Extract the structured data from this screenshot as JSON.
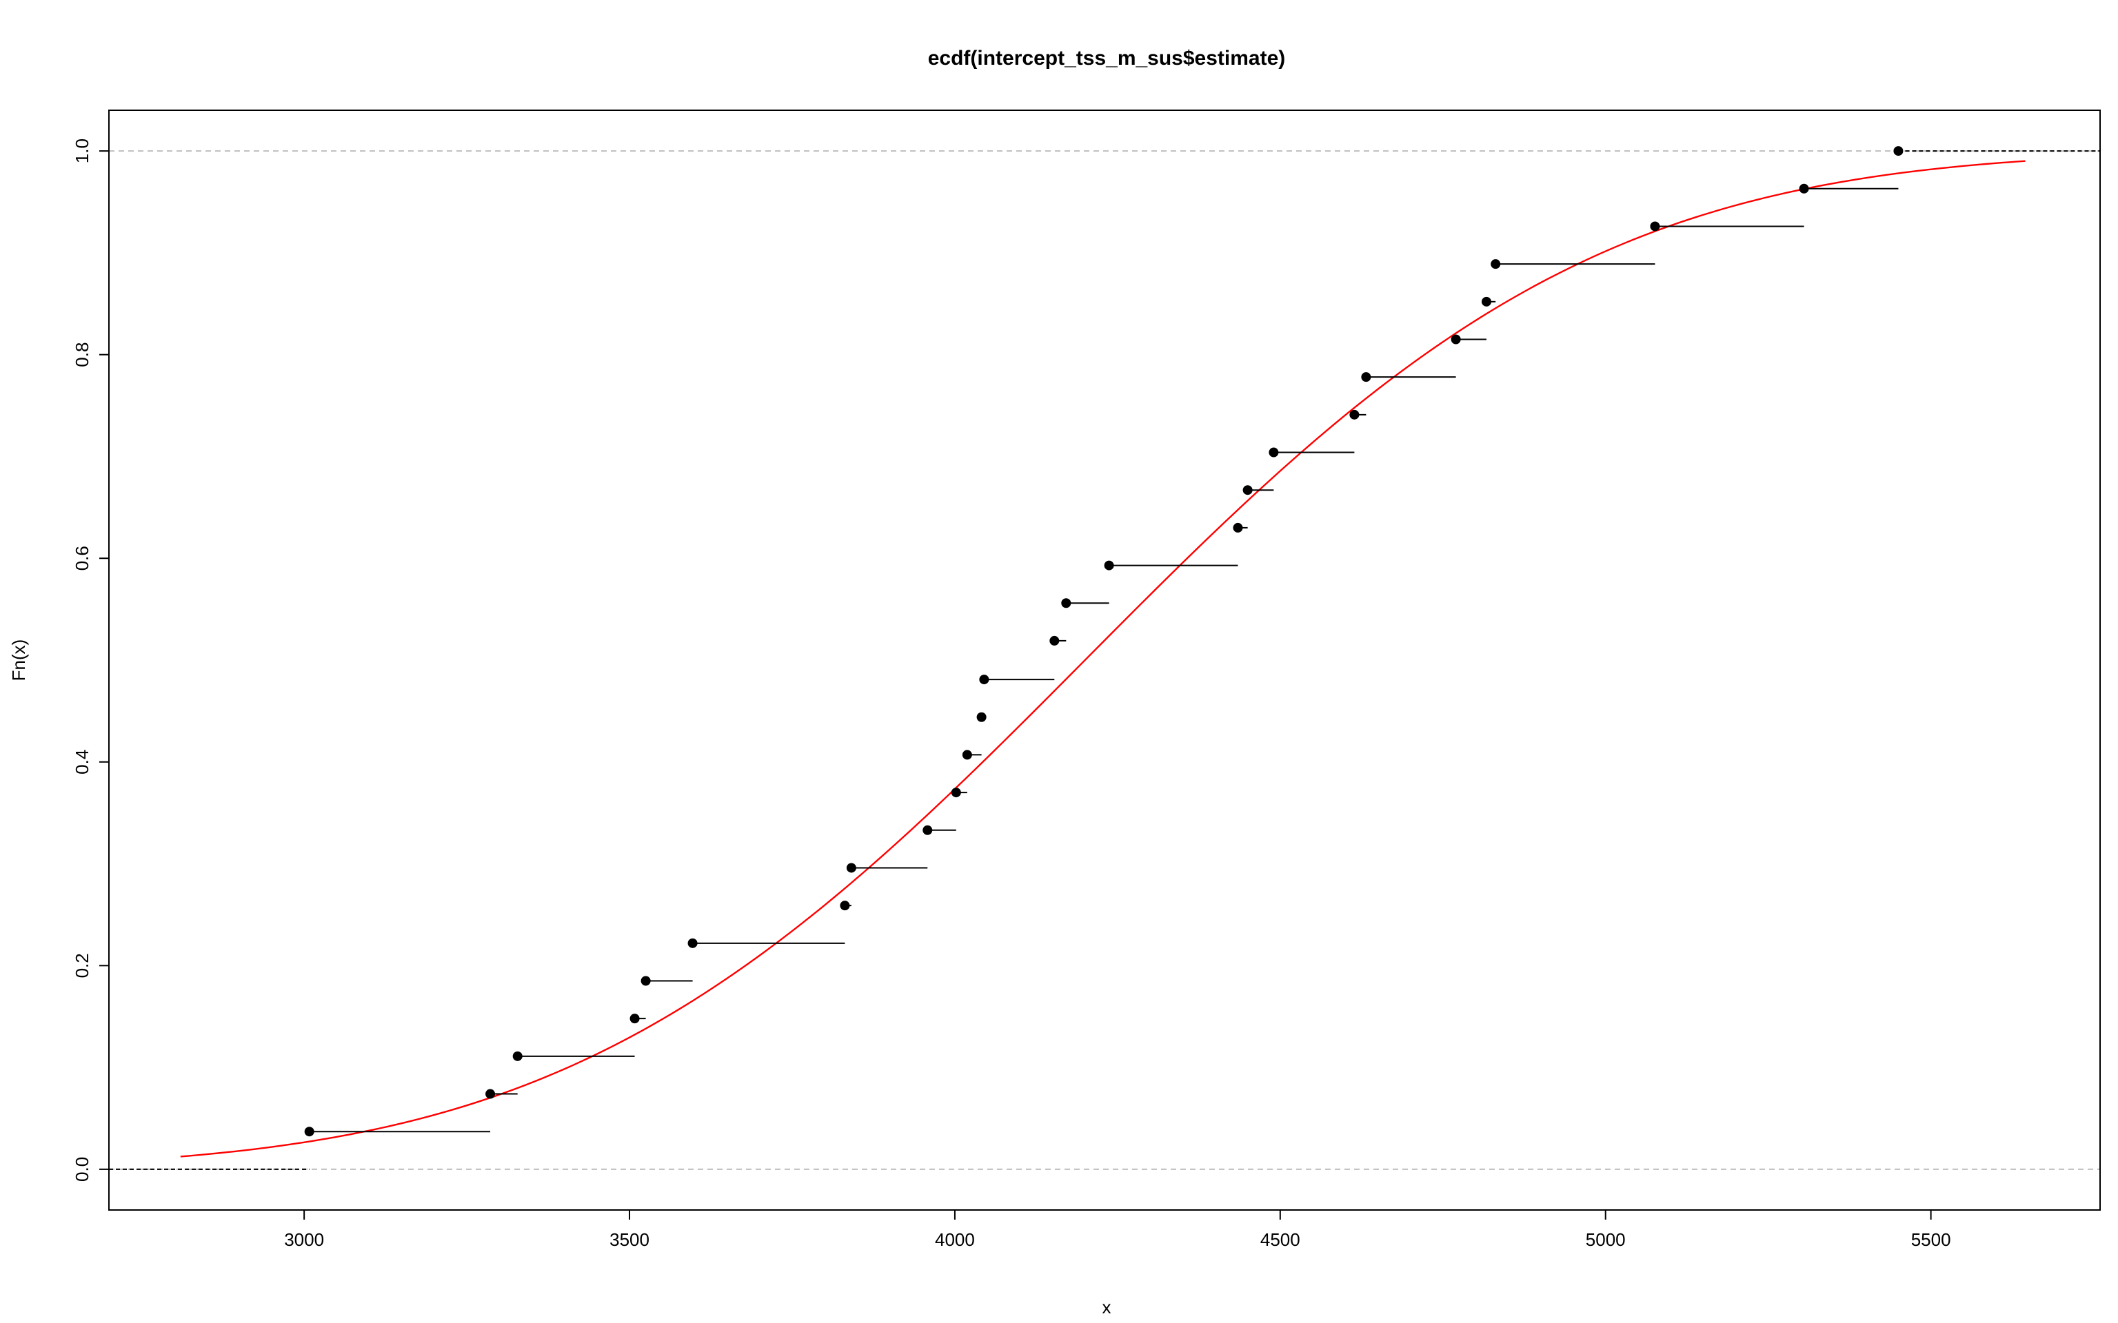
{
  "chart_data": {
    "type": "ecdf",
    "title": "ecdf(intercept_tss_m_sus$estimate)",
    "xlabel": "x",
    "ylabel": "Fn(x)",
    "xlim": [
      2700,
      5760
    ],
    "ylim": [
      -0.04,
      1.04
    ],
    "x_ticks": [
      3000,
      3500,
      4000,
      4500,
      5000,
      5500
    ],
    "y_ticks": [
      0.0,
      0.2,
      0.4,
      0.6,
      0.8,
      1.0
    ],
    "x_tick_labels": [
      "3000",
      "3500",
      "4000",
      "4500",
      "5000",
      "5500"
    ],
    "y_tick_labels": [
      "0.0",
      "0.2",
      "0.4",
      "0.6",
      "0.8",
      "1.0"
    ],
    "reference_lines": [
      0,
      1
    ],
    "points": [
      {
        "x": 3008,
        "y": 0.037
      },
      {
        "x": 3286,
        "y": 0.074
      },
      {
        "x": 3328,
        "y": 0.111
      },
      {
        "x": 3508,
        "y": 0.148
      },
      {
        "x": 3525,
        "y": 0.185
      },
      {
        "x": 3597,
        "y": 0.222
      },
      {
        "x": 3831,
        "y": 0.259
      },
      {
        "x": 3841,
        "y": 0.296
      },
      {
        "x": 3958,
        "y": 0.333
      },
      {
        "x": 4002,
        "y": 0.37
      },
      {
        "x": 4019,
        "y": 0.407
      },
      {
        "x": 4041,
        "y": 0.444
      },
      {
        "x": 4045,
        "y": 0.481
      },
      {
        "x": 4153,
        "y": 0.519
      },
      {
        "x": 4171,
        "y": 0.556
      },
      {
        "x": 4237,
        "y": 0.593
      },
      {
        "x": 4435,
        "y": 0.63
      },
      {
        "x": 4450,
        "y": 0.667
      },
      {
        "x": 4490,
        "y": 0.704
      },
      {
        "x": 4614,
        "y": 0.741
      },
      {
        "x": 4632,
        "y": 0.778
      },
      {
        "x": 4770,
        "y": 0.815
      },
      {
        "x": 4817,
        "y": 0.852
      },
      {
        "x": 4831,
        "y": 0.889
      },
      {
        "x": 5076,
        "y": 0.926
      },
      {
        "x": 5305,
        "y": 0.963
      },
      {
        "x": 5450,
        "y": 1.0
      }
    ],
    "fitted_curve": {
      "type": "normal-cdf",
      "mean": 4200,
      "sd": 620,
      "x_range": [
        2810,
        5645
      ],
      "color": "#ff0000"
    },
    "colors": {
      "steps": "#000000",
      "points": "#000000",
      "curve": "#ff0000",
      "reference": "#bebebe"
    }
  }
}
